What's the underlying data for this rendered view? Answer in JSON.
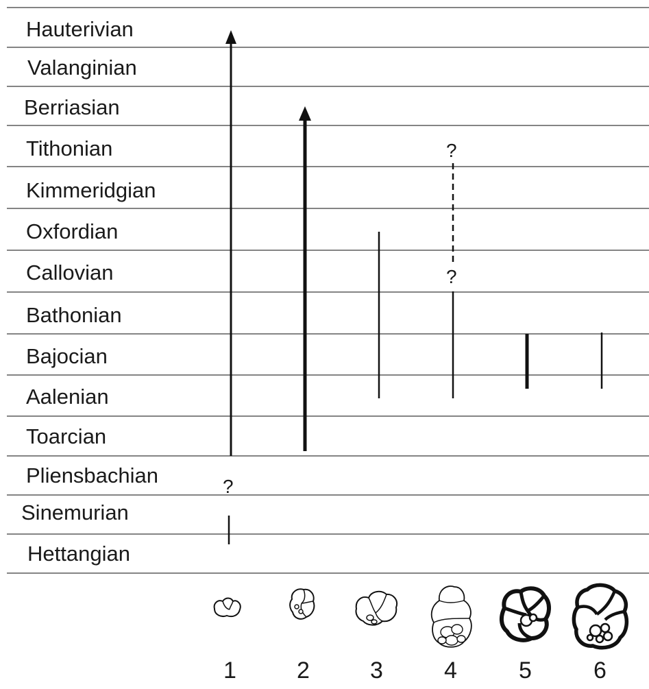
{
  "stages": [
    "Hauterivian",
    "Valanginian",
    "Berriasian",
    "Tithonian",
    "Kimmeridgian",
    "Oxfordian",
    "Callovian",
    "Bathonian",
    "Bajocian",
    "Aalenian",
    "Toarcian",
    "Pliensbachian",
    "Sinemurian",
    "Hettangian"
  ],
  "taxa": [
    "1",
    "2",
    "3",
    "4",
    "5",
    "6"
  ],
  "uncertain_marker": "?",
  "ranges": [
    {
      "taxon": "1",
      "from": "Sinemurian",
      "to": "Hauterivian",
      "extends_beyond": true,
      "uncertain_interval": "Pliensbachian",
      "style": "thin"
    },
    {
      "taxon": "2",
      "from": "Toarcian",
      "to": "Berriasian",
      "extends_beyond": true,
      "style": "thick"
    },
    {
      "taxon": "3",
      "from": "Aalenian",
      "to": "Oxfordian",
      "style": "thin"
    },
    {
      "taxon": "4",
      "from": "Aalenian",
      "to": "Tithonian",
      "uncertain_interval": "Callovian–Tithonian",
      "style": "thin"
    },
    {
      "taxon": "5",
      "from": "Aalenian",
      "to": "Bajocian",
      "style": "thick"
    },
    {
      "taxon": "6",
      "from": "Aalenian",
      "to": "Bajocian",
      "style": "thin"
    }
  ]
}
